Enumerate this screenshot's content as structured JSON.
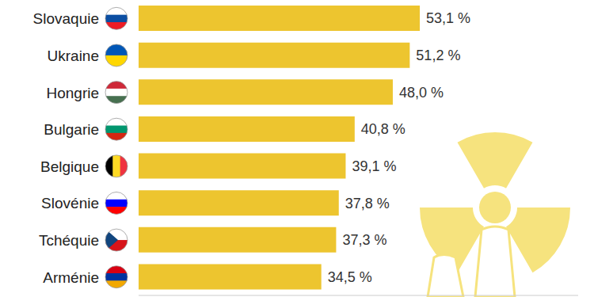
{
  "chart_data": {
    "type": "bar",
    "orientation": "horizontal",
    "categories": [
      "Slovaquie",
      "Ukraine",
      "Hongrie",
      "Bulgarie",
      "Belgique",
      "Slovénie",
      "Tchéquie",
      "Arménie"
    ],
    "values": [
      53.1,
      51.2,
      48.0,
      40.8,
      39.1,
      37.8,
      37.3,
      34.5
    ],
    "value_labels": [
      "53,1 %",
      "51,2 %",
      "48,0 %",
      "40,8 %",
      "39,1 %",
      "37,8 %",
      "37,3 %",
      "34,5 %"
    ],
    "color": "#EDC52F",
    "xlim": [
      0,
      83
    ],
    "data_labels": true,
    "tick_labels": "y",
    "grid": false
  }
}
